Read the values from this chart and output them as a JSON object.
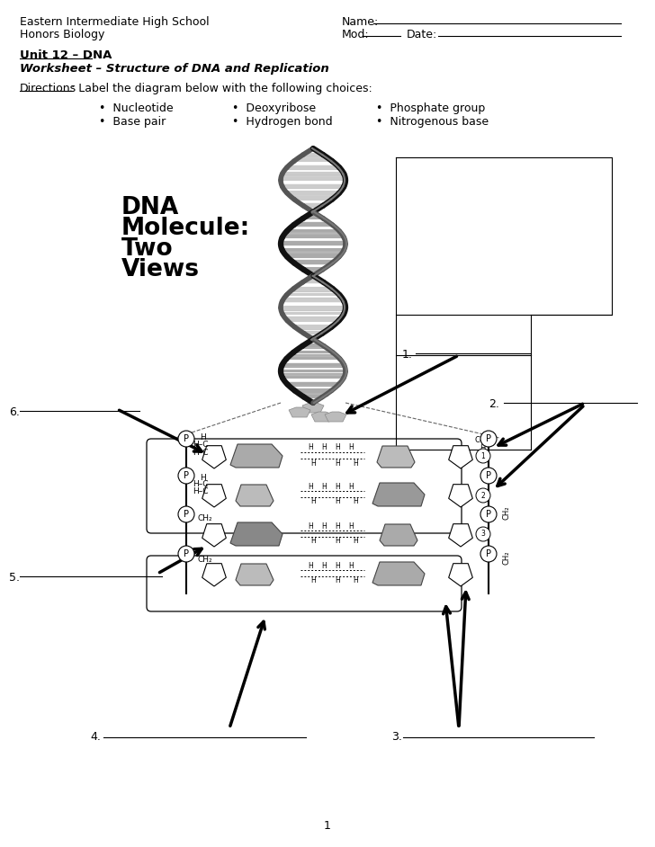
{
  "title_school": "Eastern Intermediate High School",
  "title_class": "Honors Biology",
  "name_label": "Name:",
  "mod_label": "Mod:",
  "date_label": "Date:",
  "unit_label": "Unit 12 – DNA",
  "worksheet_title": "Worksheet – Structure of DNA and Replication",
  "directions_underlined": "Directions",
  "directions_rest": ": Label the diagram below with the following choices:",
  "bullet_col1": [
    "Nucleotide",
    "Base pair"
  ],
  "bullet_col2": [
    "Deoxyribose",
    "Hydrogen bond"
  ],
  "bullet_col3": [
    "Phosphate group",
    "Nitrogenous base"
  ],
  "dna_text": [
    "DNA",
    "Molecule:",
    "Two",
    "Views"
  ],
  "label1": "1.",
  "label2": "2.",
  "label3": "3.",
  "label4": "4.",
  "label5": "5.",
  "label6": "6.",
  "page_number": "1",
  "bg_color": "#ffffff",
  "text_color": "#000000"
}
